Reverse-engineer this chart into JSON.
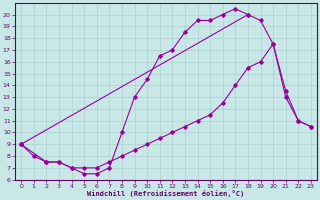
{
  "xlabel": "Windchill (Refroidissement éolien,°C)",
  "bg_color": "#c8e8e8",
  "grid_color": "#b0d0d0",
  "line_color": "#990099",
  "xlim": [
    -0.5,
    23.5
  ],
  "ylim": [
    6,
    21
  ],
  "xticks": [
    0,
    1,
    2,
    3,
    4,
    5,
    6,
    7,
    8,
    9,
    10,
    11,
    12,
    13,
    14,
    15,
    16,
    17,
    18,
    19,
    20,
    21,
    22,
    23
  ],
  "yticks": [
    6,
    7,
    8,
    9,
    10,
    11,
    12,
    13,
    14,
    15,
    16,
    17,
    18,
    19,
    20
  ],
  "line1_x": [
    0,
    1,
    2,
    3,
    4,
    5,
    6,
    7,
    8,
    9,
    10,
    11,
    12,
    13,
    14,
    15,
    16,
    17,
    18
  ],
  "line1_y": [
    9,
    8,
    7.5,
    7.5,
    7,
    6.5,
    6.5,
    7,
    10,
    13,
    14.5,
    16.5,
    17,
    18.5,
    19.5,
    19.5,
    20,
    20.5,
    20
  ],
  "line2_x": [
    0,
    18,
    19,
    20,
    21,
    22,
    23
  ],
  "line2_y": [
    9,
    20,
    19.5,
    17.5,
    13.5,
    11,
    10.5
  ],
  "line3_x": [
    0,
    2,
    3,
    4,
    5,
    6,
    7,
    8,
    9,
    10,
    11,
    12,
    13,
    14,
    15,
    16,
    17,
    18,
    19,
    20,
    21,
    22,
    23
  ],
  "line3_y": [
    9,
    7.5,
    7.5,
    7,
    7,
    7,
    7.5,
    8,
    8.5,
    9,
    9.5,
    10,
    10.5,
    11,
    11.5,
    12.5,
    14,
    15.5,
    16,
    17.5,
    13,
    11,
    10.5
  ],
  "tick_fontsize": 4.5,
  "xlabel_fontsize": 5.0,
  "spine_color": "#660066",
  "tick_color": "#660066"
}
